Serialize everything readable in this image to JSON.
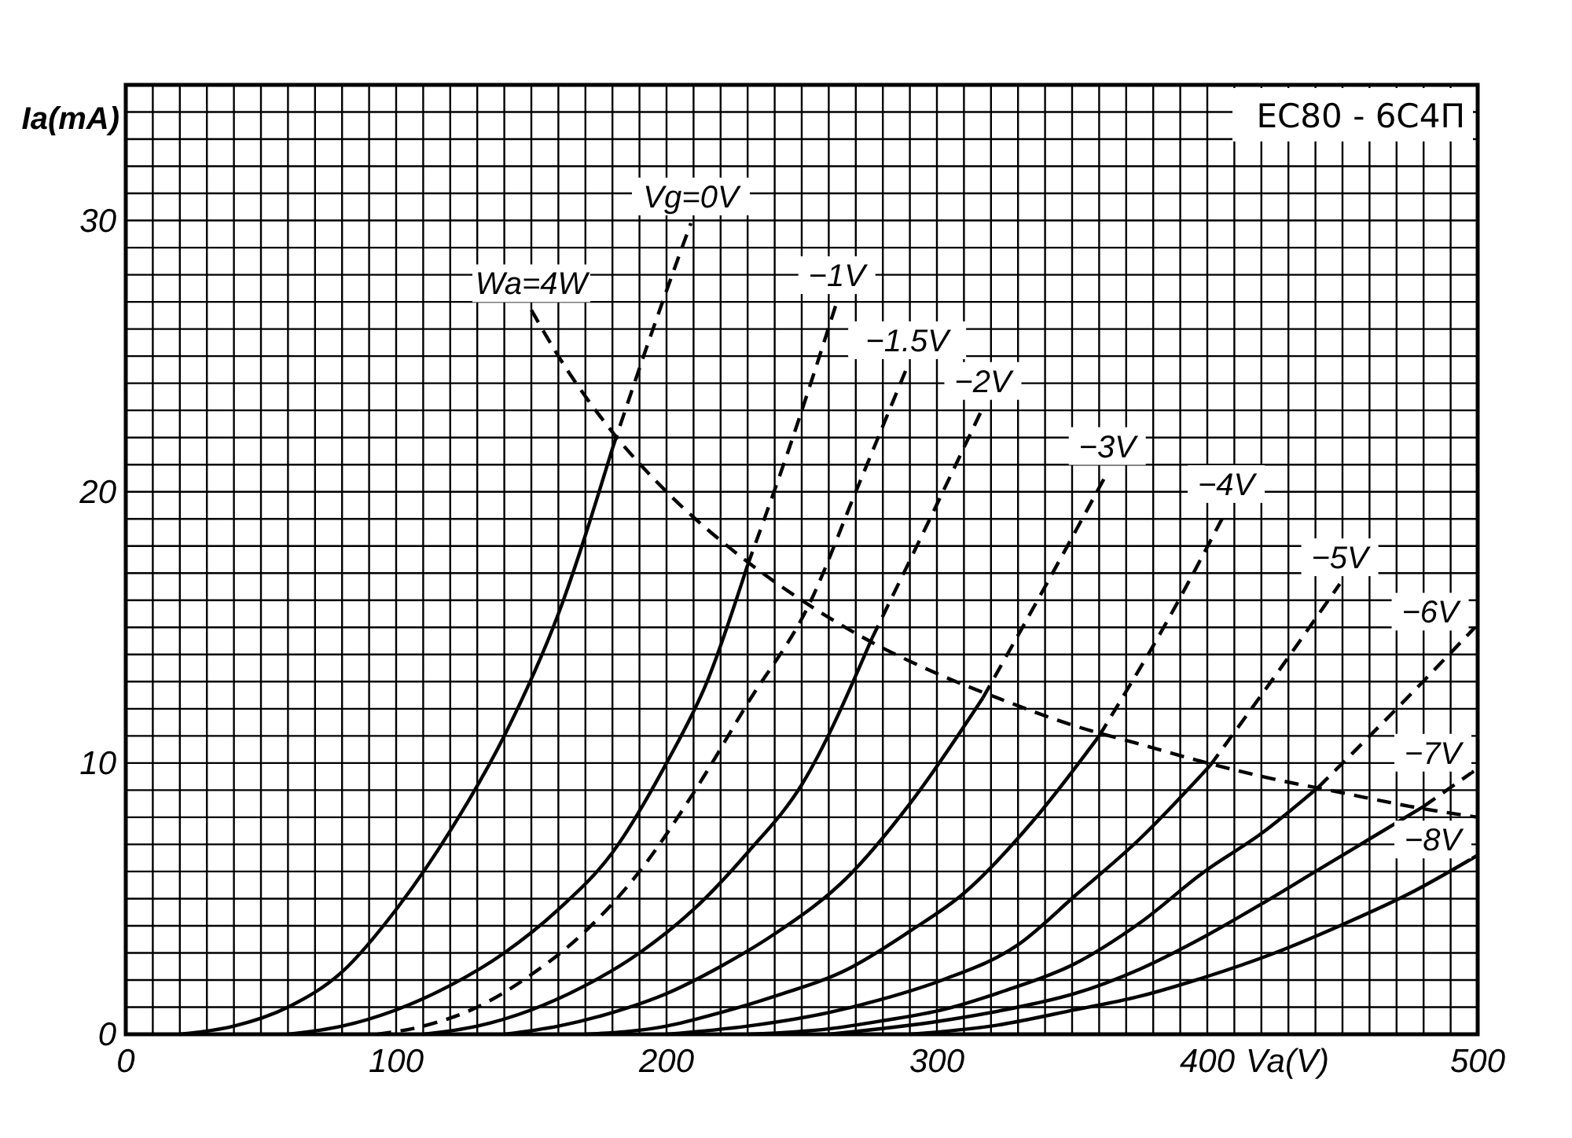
{
  "chart_data": {
    "type": "line",
    "title": "EC80 - 6С4П",
    "xlabel": "Va(V)",
    "ylabel": "Ia(mA)",
    "xlim": [
      0,
      500
    ],
    "ylim": [
      0,
      35
    ],
    "xticks": [
      0,
      {
        "value": 10,
        "label": null
      },
      {
        "value": 20,
        "label": null
      },
      {
        "value": 30,
        "label": null
      },
      {
        "value": 40,
        "label": null
      },
      {
        "value": 50,
        "label": null
      },
      {
        "value": 60,
        "label": null
      },
      {
        "value": 70,
        "label": null
      },
      {
        "value": 80,
        "label": null
      },
      {
        "value": 90,
        "label": null
      },
      100,
      {
        "value": 110,
        "label": null
      },
      {
        "value": 120,
        "label": null
      },
      {
        "value": 130,
        "label": null
      },
      {
        "value": 140,
        "label": null
      },
      {
        "value": 150,
        "label": null
      },
      {
        "value": 160,
        "label": null
      },
      {
        "value": 170,
        "label": null
      },
      {
        "value": 180,
        "label": null
      },
      {
        "value": 190,
        "label": null
      },
      200,
      {
        "value": 210,
        "label": null
      },
      {
        "value": 220,
        "label": null
      },
      {
        "value": 230,
        "label": null
      },
      {
        "value": 240,
        "label": null
      },
      {
        "value": 250,
        "label": null
      },
      {
        "value": 260,
        "label": null
      },
      {
        "value": 270,
        "label": null
      },
      {
        "value": 280,
        "label": null
      },
      {
        "value": 290,
        "label": null
      },
      300,
      {
        "value": 310,
        "label": null
      },
      {
        "value": 320,
        "label": null
      },
      {
        "value": 330,
        "label": null
      },
      {
        "value": 340,
        "label": null
      },
      {
        "value": 350,
        "label": null
      },
      {
        "value": 360,
        "label": null
      },
      {
        "value": 370,
        "label": null
      },
      {
        "value": 380,
        "label": null
      },
      {
        "value": 390,
        "label": null
      },
      400,
      {
        "value": 410,
        "label": null
      },
      {
        "value": 420,
        "label": null
      },
      {
        "value": 430,
        "label": null
      },
      {
        "value": 440,
        "label": null
      },
      {
        "value": 450,
        "label": null
      },
      {
        "value": 460,
        "label": null
      },
      {
        "value": 470,
        "label": null
      },
      {
        "value": 480,
        "label": null
      },
      {
        "value": 490,
        "label": null
      },
      500
    ],
    "yticks": [
      0,
      {
        "value": 1,
        "label": null
      },
      {
        "value": 2,
        "label": null
      },
      {
        "value": 3,
        "label": null
      },
      {
        "value": 4,
        "label": null
      },
      {
        "value": 5,
        "label": null
      },
      {
        "value": 6,
        "label": null
      },
      {
        "value": 7,
        "label": null
      },
      {
        "value": 8,
        "label": null
      },
      {
        "value": 9,
        "label": null
      },
      10,
      {
        "value": 11,
        "label": null
      },
      {
        "value": 12,
        "label": null
      },
      {
        "value": 13,
        "label": null
      },
      {
        "value": 14,
        "label": null
      },
      {
        "value": 15,
        "label": null
      },
      {
        "value": 16,
        "label": null
      },
      {
        "value": 17,
        "label": null
      },
      {
        "value": 18,
        "label": null
      },
      {
        "value": 19,
        "label": null
      },
      20,
      {
        "value": 21,
        "label": null
      },
      {
        "value": 22,
        "label": null
      },
      {
        "value": 23,
        "label": null
      },
      {
        "value": 24,
        "label": null
      },
      {
        "value": 25,
        "label": null
      },
      {
        "value": 26,
        "label": null
      },
      {
        "value": 27,
        "label": null
      },
      {
        "value": 28,
        "label": null
      },
      {
        "value": 29,
        "label": null
      },
      30,
      {
        "value": 31,
        "label": null
      },
      {
        "value": 32,
        "label": null
      },
      {
        "value": 33,
        "label": null
      },
      {
        "value": 34,
        "label": null
      },
      {
        "value": 35,
        "label": null
      }
    ],
    "grid": true,
    "series": [
      {
        "color": "#000000",
        "line_style": "solid",
        "x": [
          20,
          40,
          60,
          80,
          100,
          120,
          140,
          160,
          180
        ],
        "values": [
          0,
          0.3,
          1.0,
          2.3,
          4.6,
          7.5,
          11,
          15.5,
          21.6
        ]
      },
      {
        "name": "Vg=0V",
        "color": "#000000",
        "line_style": "dashed",
        "x": [
          180,
          195,
          209
        ],
        "values": [
          21.6,
          26,
          29.9
        ]
      },
      {
        "color": "#000000",
        "line_style": "solid",
        "x": [
          60,
          80,
          100,
          120,
          140,
          160,
          180,
          200,
          215,
          230
        ],
        "values": [
          0,
          0.3,
          0.9,
          1.8,
          3.0,
          4.6,
          6.7,
          10,
          13,
          17.3
        ]
      },
      {
        "name": "−1V",
        "color": "#000000",
        "line_style": "dashed",
        "x": [
          230,
          245,
          263
        ],
        "values": [
          17.3,
          21.5,
          27
        ]
      },
      {
        "name": "−1.5V",
        "color": "#000000",
        "line_style": "dashed",
        "x": [
          93,
          110,
          130,
          150,
          170,
          190,
          210,
          230,
          253,
          270,
          289
        ],
        "values": [
          0,
          0.3,
          1.0,
          2.2,
          3.8,
          6.0,
          8.9,
          12.2,
          15.9,
          20,
          24.6
        ]
      },
      {
        "color": "#000000",
        "line_style": "solid",
        "x": [
          110,
          130,
          150,
          170,
          190,
          210,
          230,
          250,
          276
        ],
        "values": [
          0,
          0.3,
          0.9,
          1.8,
          3.0,
          4.6,
          6.7,
          9.2,
          14.6
        ]
      },
      {
        "name": "−2V",
        "color": "#000000",
        "line_style": "dashed",
        "x": [
          276,
          295,
          317
        ],
        "values": [
          14.6,
          18.5,
          23.1
        ]
      },
      {
        "color": "#000000",
        "line_style": "solid",
        "x": [
          140,
          160,
          180,
          200,
          220,
          240,
          267,
          290,
          317
        ],
        "values": [
          0,
          0.3,
          0.8,
          1.5,
          2.5,
          3.7,
          5.8,
          8.5,
          12.4
        ]
      },
      {
        "name": "−3V",
        "color": "#000000",
        "line_style": "dashed",
        "x": [
          317,
          340,
          363
        ],
        "values": [
          12.4,
          16.5,
          20.7
        ]
      },
      {
        "color": "#000000",
        "line_style": "solid",
        "x": [
          170,
          200,
          220,
          240,
          267,
          290,
          310,
          335,
          360
        ],
        "values": [
          0,
          0.3,
          0.8,
          1.4,
          2.4,
          3.8,
          5.2,
          7.8,
          11.0
        ]
      },
      {
        "name": "−4V",
        "color": "#000000",
        "line_style": "dashed",
        "x": [
          360,
          385,
          407
        ],
        "values": [
          11.0,
          15.2,
          19.3
        ]
      },
      {
        "color": "#000000",
        "line_style": "solid",
        "x": [
          200,
          230,
          260,
          280,
          302,
          330,
          351,
          375,
          401
        ],
        "values": [
          0,
          0.3,
          0.8,
          1.3,
          2.0,
          3.3,
          5.1,
          7.2,
          9.9
        ]
      },
      {
        "name": "−5V",
        "color": "#000000",
        "line_style": "dashed",
        "x": [
          401,
          425,
          449
        ],
        "values": [
          9.9,
          13.2,
          16.6
        ]
      },
      {
        "color": "#000000",
        "line_style": "solid",
        "x": [
          230,
          260,
          280,
          302,
          325,
          351,
          375,
          399,
          420,
          441
        ],
        "values": [
          0,
          0.2,
          0.5,
          0.9,
          1.6,
          2.6,
          4.1,
          6.0,
          7.4,
          9.1
        ]
      },
      {
        "name": "−6V",
        "color": "#000000",
        "line_style": "dashed",
        "x": [
          441,
          470,
          499
        ],
        "values": [
          9.1,
          12,
          15
        ]
      },
      {
        "color": "#000000",
        "line_style": "solid",
        "x": [
          260,
          302,
          330,
          351,
          375,
          399,
          420,
          440,
          460,
          480
        ],
        "values": [
          0,
          0.5,
          1.0,
          1.5,
          2.4,
          3.6,
          4.8,
          6.0,
          7.2,
          8.4
        ]
      },
      {
        "name": "−7V",
        "color": "#000000",
        "line_style": "dashed",
        "x": [
          480,
          500
        ],
        "values": [
          8.4,
          9.8
        ]
      },
      {
        "name": "−8V",
        "color": "#000000",
        "line_style": "solid",
        "x": [
          290,
          320,
          351,
          375,
          399,
          425,
          449,
          475,
          500
        ],
        "values": [
          0,
          0.3,
          0.9,
          1.4,
          2.1,
          3.0,
          4.0,
          5.2,
          6.6
        ]
      },
      {
        "name": "Wa=4W",
        "color": "#000000",
        "line_style": "dashed",
        "x": [
          150,
          160,
          180,
          200,
          225,
          250,
          275,
          300,
          325,
          350,
          375,
          400,
          425,
          450,
          475,
          500
        ],
        "values": [
          26.7,
          25,
          22.2,
          20,
          17.8,
          16,
          14.5,
          13.3,
          12.3,
          11.4,
          10.7,
          10,
          9.4,
          8.9,
          8.4,
          8
        ]
      }
    ]
  }
}
